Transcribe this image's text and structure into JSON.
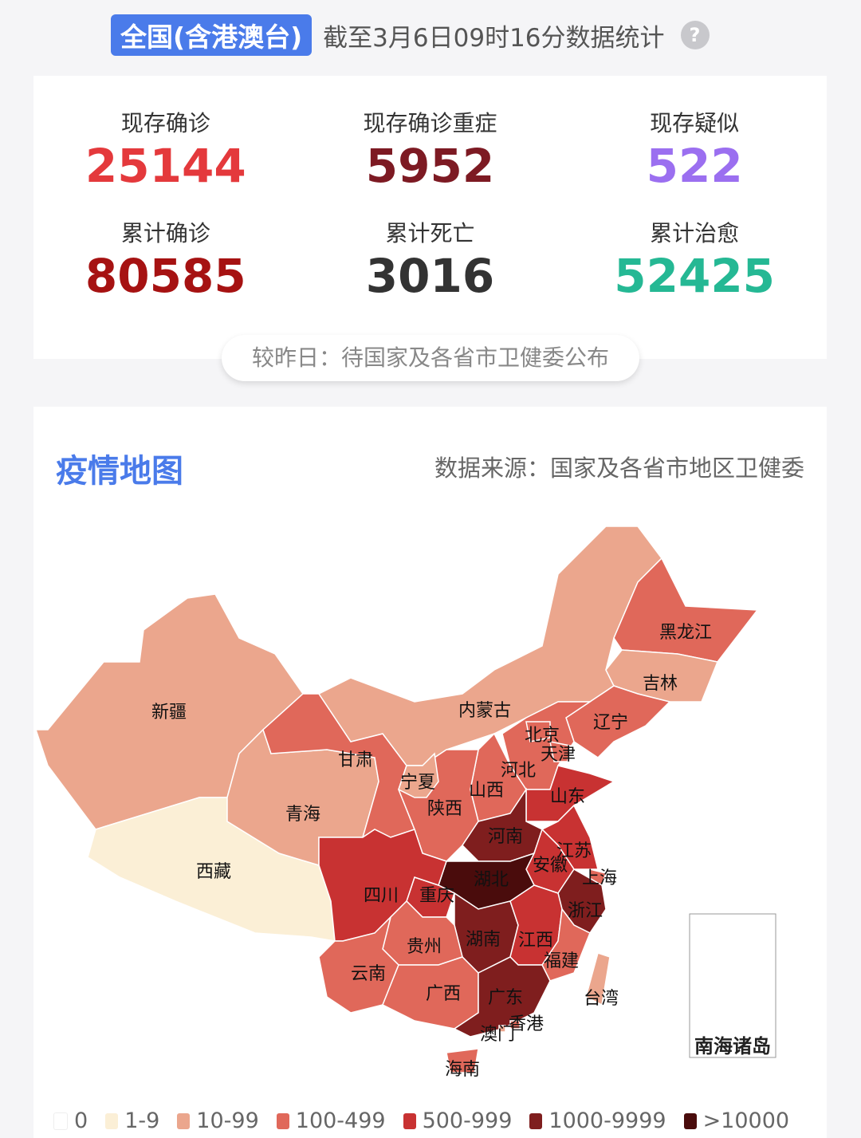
{
  "header": {
    "scope": "全国(含港澳台)",
    "timestamp": "截至3月6日09时16分数据统计",
    "help_icon": "question-circle-icon"
  },
  "stats": [
    {
      "label": "现存确诊",
      "value": "25144",
      "color": "#e4393c"
    },
    {
      "label": "现存确诊重症",
      "value": "5952",
      "color": "#7d1a23"
    },
    {
      "label": "现存疑似",
      "value": "522",
      "color": "#9b6ff0"
    },
    {
      "label": "累计确诊",
      "value": "80585",
      "color": "#a61212"
    },
    {
      "label": "累计死亡",
      "value": "3016",
      "color": "#333333"
    },
    {
      "label": "累计治愈",
      "value": "52425",
      "color": "#25b894"
    }
  ],
  "compare_note": "较昨日：待国家及各省市卫健委公布",
  "map": {
    "title": "疫情地图",
    "source": "数据来源：国家及各省市地区卫健委",
    "inset_label": "南海诸岛",
    "legend": [
      {
        "label": "0",
        "color": "#ffffff"
      },
      {
        "label": "1-9",
        "color": "#fbefd6"
      },
      {
        "label": "10-99",
        "color": "#eba68d"
      },
      {
        "label": "100-499",
        "color": "#e0685a"
      },
      {
        "label": "500-999",
        "color": "#c83232"
      },
      {
        "label": "1000-9999",
        "color": "#7f1e1e"
      },
      {
        "label": ">10000",
        "color": "#4a0c0c"
      }
    ],
    "provinces": [
      {
        "name": "新疆",
        "bucket": 2
      },
      {
        "name": "西藏",
        "bucket": 1
      },
      {
        "name": "青海",
        "bucket": 2
      },
      {
        "name": "甘肃",
        "bucket": 3
      },
      {
        "name": "内蒙古",
        "bucket": 2
      },
      {
        "name": "黑龙江",
        "bucket": 3
      },
      {
        "name": "吉林",
        "bucket": 2
      },
      {
        "name": "辽宁",
        "bucket": 3
      },
      {
        "name": "河北",
        "bucket": 3
      },
      {
        "name": "北京",
        "bucket": 3
      },
      {
        "name": "天津",
        "bucket": 3
      },
      {
        "name": "山西",
        "bucket": 3
      },
      {
        "name": "陕西",
        "bucket": 3
      },
      {
        "name": "宁夏",
        "bucket": 2
      },
      {
        "name": "山东",
        "bucket": 4
      },
      {
        "name": "河南",
        "bucket": 5
      },
      {
        "name": "江苏",
        "bucket": 4
      },
      {
        "name": "安徽",
        "bucket": 4
      },
      {
        "name": "上海",
        "bucket": 3
      },
      {
        "name": "浙江",
        "bucket": 5
      },
      {
        "name": "湖北",
        "bucket": 6
      },
      {
        "name": "重庆",
        "bucket": 4
      },
      {
        "name": "四川",
        "bucket": 4
      },
      {
        "name": "湖南",
        "bucket": 5
      },
      {
        "name": "江西",
        "bucket": 4
      },
      {
        "name": "福建",
        "bucket": 3
      },
      {
        "name": "贵州",
        "bucket": 3
      },
      {
        "name": "云南",
        "bucket": 3
      },
      {
        "name": "广西",
        "bucket": 3
      },
      {
        "name": "广东",
        "bucket": 5
      },
      {
        "name": "海南",
        "bucket": 3
      },
      {
        "name": "台湾",
        "bucket": 2
      },
      {
        "name": "香港",
        "bucket": 3
      },
      {
        "name": "澳门",
        "bucket": 2
      }
    ]
  }
}
